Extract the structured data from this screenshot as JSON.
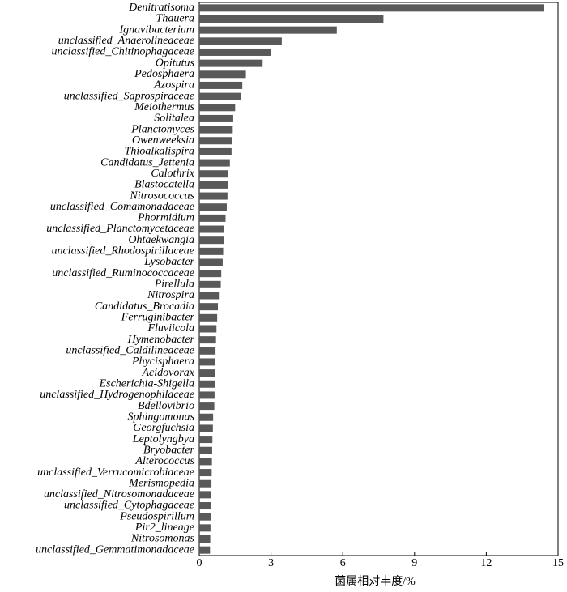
{
  "chart_data": {
    "type": "barh",
    "x_label": "菌属相对丰度/%",
    "categories": [
      "Denitratisoma",
      "Thauera",
      "Ignavibacterium",
      "unclassified_Anaerolineaceae",
      "unclassified_Chitinophagaceae",
      "Opitutus",
      "Pedosphaera",
      "Azospira",
      "unclassified_Saprospiraceae",
      "Meiothermus",
      "Solitalea",
      "Planctomyces",
      "Owenweeksia",
      "Thioalkalispira",
      "Candidatus_Jettenia",
      "Calothrix",
      "Blastocatella",
      "Nitrosococcus",
      "unclassified_Comamonadaceae",
      "Phormidium",
      "unclassified_Planctomycetaceae",
      "Ohtaekwangia",
      "unclassified_Rhodospirillaceae",
      "Lysobacter",
      "unclassified_Ruminococcaceae",
      "Pirellula",
      "Nitrospira",
      "Candidatus_Brocadia",
      "Ferruginibacter",
      "Fluviicola",
      "Hymenobacter",
      "unclassified_Caldilineaceae",
      "Phycisphaera",
      "Acidovorax",
      "Escherichia-Shigella",
      "unclassified_Hydrogenophilaceae",
      "Bdellovibrio",
      "Sphingomonas",
      "Georgfuchsia",
      "Leptolyngbya",
      "Bryobacter",
      "Alterococcus",
      "unclassified_Verrucomicrobiaceae",
      "Merismopedia",
      "unclassified_Nitrosomonadaceae",
      "unclassified_Cytophagaceae",
      "Pseudospirillum",
      "Pir2_lineage",
      "Nitrosomonas",
      "unclassified_Gemmatimonadaceae"
    ],
    "values": [
      14.4,
      7.7,
      5.75,
      3.45,
      3.0,
      2.65,
      1.95,
      1.8,
      1.75,
      1.5,
      1.42,
      1.4,
      1.38,
      1.35,
      1.28,
      1.22,
      1.2,
      1.18,
      1.15,
      1.1,
      1.05,
      1.05,
      1.0,
      0.98,
      0.92,
      0.9,
      0.82,
      0.78,
      0.75,
      0.72,
      0.7,
      0.68,
      0.67,
      0.66,
      0.65,
      0.64,
      0.63,
      0.58,
      0.57,
      0.55,
      0.54,
      0.53,
      0.52,
      0.51,
      0.5,
      0.49,
      0.48,
      0.47,
      0.46,
      0.45
    ],
    "color": "#595959",
    "xlim": [
      0,
      15
    ],
    "xticks": [
      0,
      3,
      6,
      9,
      12,
      15
    ]
  }
}
